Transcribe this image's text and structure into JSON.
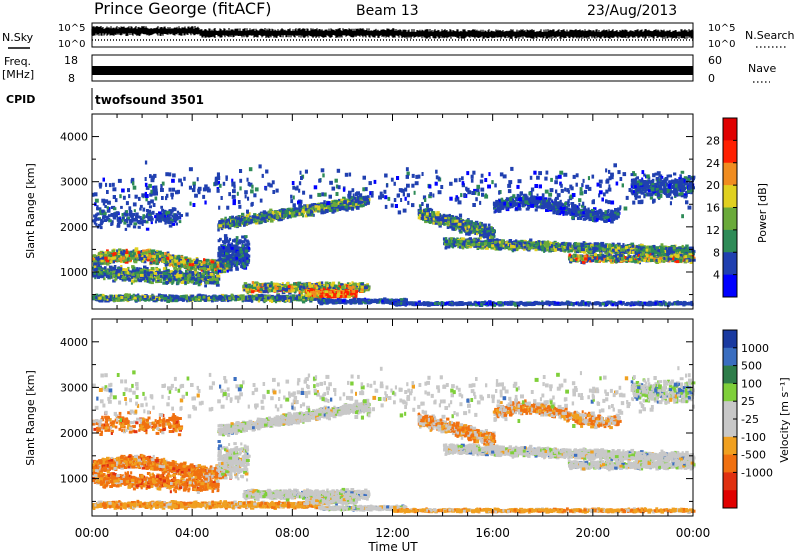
{
  "header": {
    "station": "Prince George (fitACF)",
    "beam": "Beam 13",
    "date": "23/Aug/2013"
  },
  "strips": {
    "nsky_label": "N.Sky",
    "nsky_ticks": [
      "10^5",
      "10^0"
    ],
    "nsearch_label": "N.Search",
    "nsearch_ticks": [
      "10^5",
      "10^0"
    ],
    "freq_label_line1": "Freq.",
    "freq_label_line2": "[MHz]",
    "freq_ticks": [
      "18",
      "8"
    ],
    "nave_label": "Nave",
    "nave_ticks": [
      "60",
      "0"
    ],
    "cpid_label": "CPID",
    "cpid_value": "twofsound 3501"
  },
  "chart_data": [
    {
      "type": "heatmap",
      "title": "",
      "ylabel": "Slant Range [km]",
      "xlabel": "",
      "yticks": [
        "1000",
        "2000",
        "3000",
        "4000"
      ],
      "ylim": [
        180,
        4500
      ],
      "colorbar": {
        "label": "Power [dB]",
        "ticks": [
          "4",
          "8",
          "12",
          "16",
          "20",
          "24",
          "28"
        ],
        "colors": [
          "#0000ff",
          "#2040b0",
          "#2e8b57",
          "#6aaa3a",
          "#e0d020",
          "#f08c20",
          "#ff2000",
          "#e00000"
        ]
      },
      "features": [
        {
          "t_range": [
            0,
            5.5
          ],
          "r_range": [
            1000,
            1500
          ],
          "level": "high"
        },
        {
          "t_range": [
            5,
            11
          ],
          "r_range": [
            1800,
            2700
          ],
          "level": "medium"
        },
        {
          "t_range": [
            8.5,
            10.5
          ],
          "r_range": [
            250,
            700
          ],
          "level": "very high"
        },
        {
          "t_range": [
            14,
            24
          ],
          "r_range": [
            1200,
            2200
          ],
          "level": "medium"
        }
      ]
    },
    {
      "type": "heatmap",
      "title": "",
      "ylabel": "Slant Range [km]",
      "xlabel": "Time UT",
      "x_ticks": [
        "00:00",
        "04:00",
        "08:00",
        "12:00",
        "16:00",
        "20:00",
        "00:00"
      ],
      "yticks": [
        "1000",
        "2000",
        "3000",
        "4000"
      ],
      "ylim": [
        180,
        4500
      ],
      "colorbar": {
        "label": "Velocity [m s⁻¹]",
        "ticks": [
          "1000",
          "500",
          "100",
          "25",
          "-25",
          "-100",
          "-500",
          "-1000"
        ],
        "colors": [
          "#1a3aa0",
          "#3a6ec0",
          "#2e7d4a",
          "#7fcf3a",
          "#c8c8c8",
          "#c8c8c8",
          "#f0a020",
          "#f07010",
          "#e03010",
          "#e00000"
        ]
      },
      "features": [
        {
          "t_range": [
            0,
            5.5
          ],
          "r_range": [
            500,
            1500
          ],
          "level": "negative"
        },
        {
          "t_range": [
            5,
            11
          ],
          "r_range": [
            1800,
            2700
          ],
          "level": "near zero"
        },
        {
          "t_range": [
            6,
            11
          ],
          "r_range": [
            300,
            1000
          ],
          "level": "near zero"
        },
        {
          "t_range": [
            14,
            24
          ],
          "r_range": [
            1200,
            2200
          ],
          "level": "near zero"
        }
      ]
    }
  ]
}
